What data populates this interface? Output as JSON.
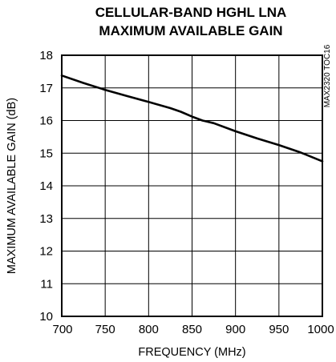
{
  "chart_data": {
    "type": "line",
    "title": [
      "CELLULAR-BAND HGHL LNA",
      "MAXIMUM AVAILABLE GAIN"
    ],
    "xlabel": "FREQUENCY (MHz)",
    "ylabel": "MAXIMUM AVAILABLE GAIN (dB)",
    "xlim": [
      700,
      1000
    ],
    "ylim": [
      10,
      18
    ],
    "xticks": [
      700,
      750,
      800,
      850,
      900,
      950,
      1000
    ],
    "yticks": [
      10,
      11,
      12,
      13,
      14,
      15,
      16,
      17,
      18
    ],
    "grid": true,
    "annotation": "MAX2320 TOC16",
    "series": [
      {
        "x": [
          700,
          725,
          750,
          775,
          800,
          825,
          837,
          850,
          862,
          875,
          900,
          925,
          950,
          975,
          1000
        ],
        "y": [
          17.38,
          17.15,
          16.94,
          16.75,
          16.57,
          16.38,
          16.27,
          16.12,
          16.0,
          15.92,
          15.67,
          15.45,
          15.25,
          15.02,
          14.75
        ]
      }
    ]
  }
}
